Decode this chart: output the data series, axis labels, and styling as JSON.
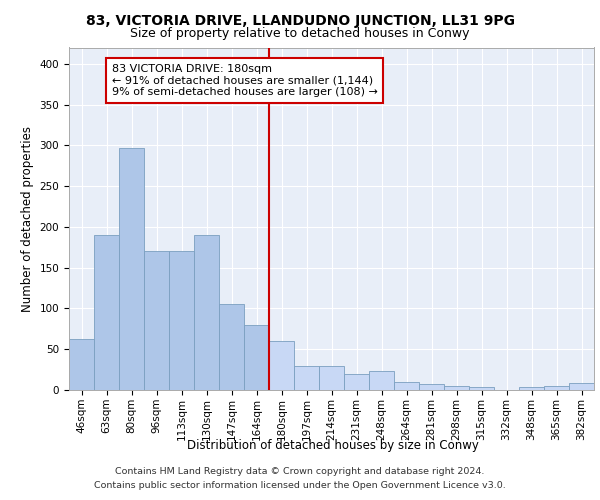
{
  "title1": "83, VICTORIA DRIVE, LLANDUDNO JUNCTION, LL31 9PG",
  "title2": "Size of property relative to detached houses in Conwy",
  "xlabel": "Distribution of detached houses by size in Conwy",
  "ylabel": "Number of detached properties",
  "footer1": "Contains HM Land Registry data © Crown copyright and database right 2024.",
  "footer2": "Contains public sector information licensed under the Open Government Licence v3.0.",
  "annotation_title": "83 VICTORIA DRIVE: 180sqm",
  "annotation_line1": "← 91% of detached houses are smaller (1,144)",
  "annotation_line2": "9% of semi-detached houses are larger (108) →",
  "bar_labels": [
    "46sqm",
    "63sqm",
    "80sqm",
    "96sqm",
    "113sqm",
    "130sqm",
    "147sqm",
    "164sqm",
    "180sqm",
    "197sqm",
    "214sqm",
    "231sqm",
    "248sqm",
    "264sqm",
    "281sqm",
    "298sqm",
    "315sqm",
    "332sqm",
    "348sqm",
    "365sqm",
    "382sqm"
  ],
  "bar_values": [
    63,
    190,
    297,
    170,
    170,
    190,
    105,
    80,
    60,
    30,
    30,
    20,
    23,
    10,
    7,
    5,
    4,
    0,
    4,
    5,
    8
  ],
  "bar_color_normal": "#aec6e8",
  "bar_color_highlight": "#c8d8f5",
  "bar_edge_color": "#7a9fc0",
  "highlight_bar_index": 8,
  "vline_color": "#cc0000",
  "ylim": [
    0,
    420
  ],
  "yticks": [
    0,
    50,
    100,
    150,
    200,
    250,
    300,
    350,
    400
  ],
  "bg_color": "#e8eef8",
  "grid_color": "#ffffff",
  "annotation_box_color": "#ffffff",
  "annotation_box_edge": "#cc0000",
  "title1_fontsize": 10,
  "title2_fontsize": 9,
  "axis_label_fontsize": 8.5,
  "tick_fontsize": 7.5,
  "annotation_fontsize": 8,
  "footer_fontsize": 6.8
}
